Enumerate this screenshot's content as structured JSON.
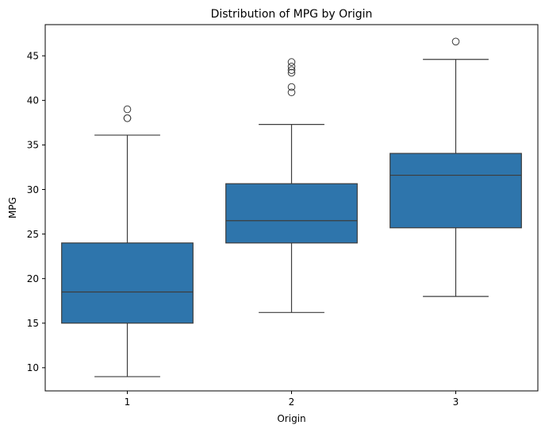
{
  "chart_data": {
    "type": "box",
    "title": "Distribution of MPG by Origin",
    "xlabel": "Origin",
    "ylabel": "MPG",
    "categories": [
      "1",
      "2",
      "3"
    ],
    "ylim": [
      7.4,
      48.5
    ],
    "yticks": [
      10,
      15,
      20,
      25,
      30,
      35,
      40,
      45
    ],
    "grid": false,
    "legend": "none",
    "colors": {
      "box_fill": "#2e75ac",
      "line": "#3d3d3d",
      "axis": "#000000"
    },
    "boxes": [
      {
        "category": "1",
        "whisker_low": 9.0,
        "q1": 15.0,
        "median": 18.5,
        "q3": 24.0,
        "whisker_high": 36.1,
        "outliers": [
          39.0,
          38.0,
          38.0
        ]
      },
      {
        "category": "2",
        "whisker_low": 16.2,
        "q1": 24.0,
        "median": 26.5,
        "q3": 30.65,
        "whisker_high": 37.3,
        "outliers": [
          44.3,
          43.8,
          43.4,
          43.1,
          41.5,
          40.9
        ]
      },
      {
        "category": "3",
        "whisker_low": 18.0,
        "q1": 25.7,
        "median": 31.6,
        "q3": 34.05,
        "whisker_high": 44.6,
        "outliers": [
          46.6
        ]
      }
    ]
  }
}
